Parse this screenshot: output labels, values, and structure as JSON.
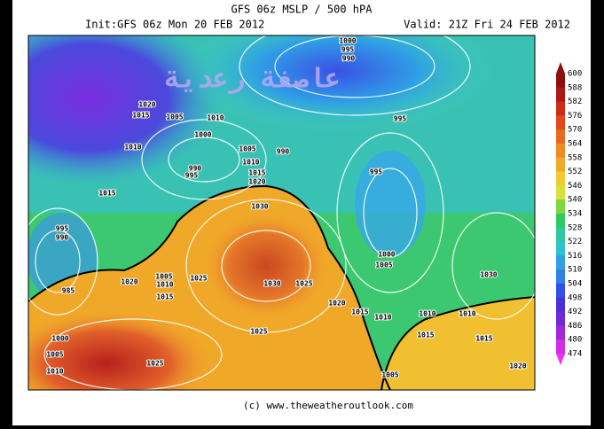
{
  "header": {
    "title": "GFS 06z MSLP / 500 hPA",
    "init": "Init:GFS 06z Mon 20 FEB 2012",
    "valid": "Valid: 21Z Fri 24 FEB 2012"
  },
  "watermark": "عاصفة رعدية",
  "colorbar_labels": [
    "600",
    "588",
    "582",
    "576",
    "570",
    "564",
    "558",
    "552",
    "546",
    "540",
    "534",
    "528",
    "522",
    "516",
    "510",
    "504",
    "498",
    "492",
    "486",
    "480",
    "474"
  ],
  "isobar_labels": [
    "1000",
    "995",
    "990",
    "1020",
    "1015",
    "1005",
    "1010",
    "1000",
    "1010",
    "1005",
    "990",
    "1010",
    "990",
    "995",
    "1015",
    "1020",
    "995",
    "995",
    "1015",
    "1030",
    "995",
    "990",
    "1020",
    "1005",
    "1010",
    "1025",
    "1015",
    "985",
    "1030",
    "1025",
    "1000",
    "1005",
    "1030",
    "1020",
    "1015",
    "1010",
    "1010",
    "1010",
    "1015",
    "1015",
    "1025",
    "1000",
    "1005",
    "1010",
    "1025",
    "1005",
    "1020"
  ],
  "footer": "(c) www.theweatheroutlook.com"
}
